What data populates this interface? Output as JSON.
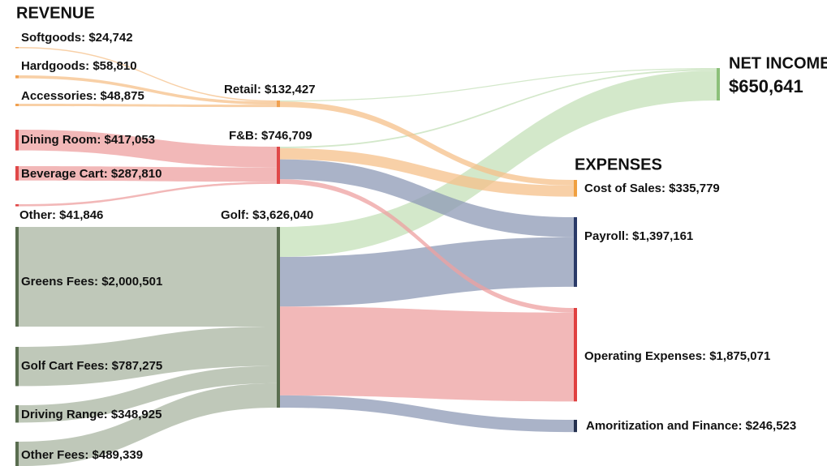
{
  "chart_data": {
    "type": "sankey",
    "headings": [
      "REVENUE",
      "EXPENSES",
      "NET INCOME"
    ],
    "nodes": [
      {
        "label": "Softgoods: $24,742",
        "value": 24742,
        "color": "#f0a050"
      },
      {
        "label": "Hardgoods: $58,810",
        "value": 58810,
        "color": "#f0a050"
      },
      {
        "label": "Accessories: $48,875",
        "value": 48875,
        "color": "#f0a050"
      },
      {
        "label": "Dining Room: $417,053",
        "value": 417053,
        "color": "#e04848"
      },
      {
        "label": "Beverage Cart: $287,810",
        "value": 287810,
        "color": "#e04848"
      },
      {
        "label": "Other: $41,846",
        "value": 41846,
        "color": "#e04848"
      },
      {
        "label": "Greens Fees: $2,000,501",
        "value": 2000501,
        "color": "#5a6e50"
      },
      {
        "label": "Golf Cart Fees: $787,275",
        "value": 787275,
        "color": "#5a6e50"
      },
      {
        "label": "Driving Range: $348,925",
        "value": 348925,
        "color": "#5a6e50"
      },
      {
        "label": "Other Fees: $489,339",
        "value": 489339,
        "color": "#5a6e50"
      },
      {
        "label": "Retail: $132,427",
        "value": 132427,
        "color": "#f0a050"
      },
      {
        "label": "F&B: $746,709",
        "value": 746709,
        "color": "#e04848"
      },
      {
        "label": "Golf: $3,626,040",
        "value": 3626040,
        "color": "#5a6e50"
      },
      {
        "label": "$650,641",
        "value": 650641,
        "color": "#8cc07a"
      },
      {
        "label": "Cost of Sales: $335,779",
        "value": 335779,
        "color": "#f0a040"
      },
      {
        "label": "Payroll: $1,397,161",
        "value": 1397161,
        "color": "#2a3a68"
      },
      {
        "label": "Operating Expenses: $1,875,071",
        "value": 1875071,
        "color": "#e04040"
      },
      {
        "label": "Amoritization and Finance: $246,523",
        "value": 246523,
        "color": "#24304e"
      }
    ],
    "links": [
      {
        "source": 0,
        "target": 10,
        "value": 24742,
        "color": "#f5c08a"
      },
      {
        "source": 1,
        "target": 10,
        "value": 58810,
        "color": "#f5c08a"
      },
      {
        "source": 2,
        "target": 10,
        "value": 48875,
        "color": "#f5c08a"
      },
      {
        "source": 3,
        "target": 11,
        "value": 417053,
        "color": "#eea0a0"
      },
      {
        "source": 4,
        "target": 11,
        "value": 287810,
        "color": "#eea0a0"
      },
      {
        "source": 5,
        "target": 11,
        "value": 41846,
        "color": "#eea0a0"
      },
      {
        "source": 6,
        "target": 12,
        "value": 2000501,
        "color": "#aab5a2"
      },
      {
        "source": 7,
        "target": 12,
        "value": 787275,
        "color": "#aab5a2"
      },
      {
        "source": 8,
        "target": 12,
        "value": 348925,
        "color": "#aab5a2"
      },
      {
        "source": 9,
        "target": 12,
        "value": 489339,
        "color": "#aab5a2"
      },
      {
        "source": 10,
        "target": 13,
        "value": 20000,
        "color": "#c4e0b8"
      },
      {
        "source": 11,
        "target": 13,
        "value": 30000,
        "color": "#c4e0b8"
      },
      {
        "source": 12,
        "target": 13,
        "value": 600642,
        "color": "#c4e0b8"
      },
      {
        "source": 10,
        "target": 14,
        "value": 112427,
        "color": "#f5c08a"
      },
      {
        "source": 11,
        "target": 14,
        "value": 223352,
        "color": "#f5c08a"
      },
      {
        "source": 11,
        "target": 15,
        "value": 400000,
        "color": "#8e9ab6"
      },
      {
        "source": 12,
        "target": 15,
        "value": 997161,
        "color": "#8e9ab6"
      },
      {
        "source": 11,
        "target": 16,
        "value": 93357,
        "color": "#eea0a0"
      },
      {
        "source": 12,
        "target": 16,
        "value": 1781714,
        "color": "#eea0a0"
      },
      {
        "source": 12,
        "target": 17,
        "value": 246523,
        "color": "#8e9ab6"
      }
    ]
  }
}
